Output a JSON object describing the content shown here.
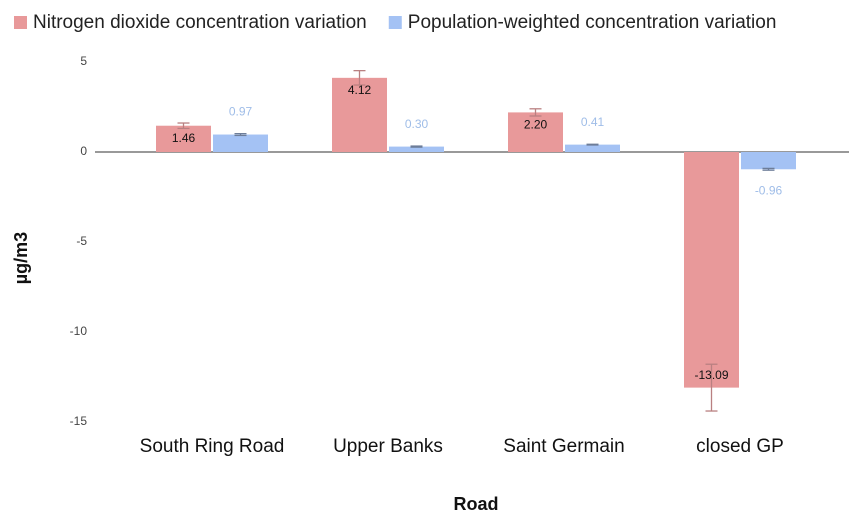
{
  "chart_data": {
    "type": "bar",
    "x_label": "Road",
    "y_label": "µg/m3",
    "categories": [
      "South Ring Road",
      "Upper Banks",
      "Saint Germain",
      "closed GP"
    ],
    "ylim": [
      -15,
      5
    ],
    "yticks": [
      5,
      0,
      -5,
      -10,
      -15
    ],
    "series": [
      {
        "name": "Nitrogen dioxide concentration variation",
        "color": "#e8999a",
        "error_color": "#b98081",
        "values": [
          1.46,
          4.12,
          2.2,
          -13.09
        ],
        "value_labels": [
          "1.46",
          "4.12",
          "2.20",
          "-13.09"
        ],
        "errors": [
          0.15,
          0.4,
          0.2,
          1.3
        ],
        "label_color": "#111111"
      },
      {
        "name": "Population-weighted concentration variation",
        "color": "#a4c2f4",
        "error_color": "#6d7d99",
        "values": [
          0.97,
          0.3,
          0.41,
          -0.96
        ],
        "value_labels": [
          "0.97",
          "0.30",
          "0.41",
          "-0.96"
        ],
        "errors": [
          0.05,
          0.03,
          0.02,
          0.05
        ],
        "label_color": "#9fbde8"
      }
    ]
  }
}
